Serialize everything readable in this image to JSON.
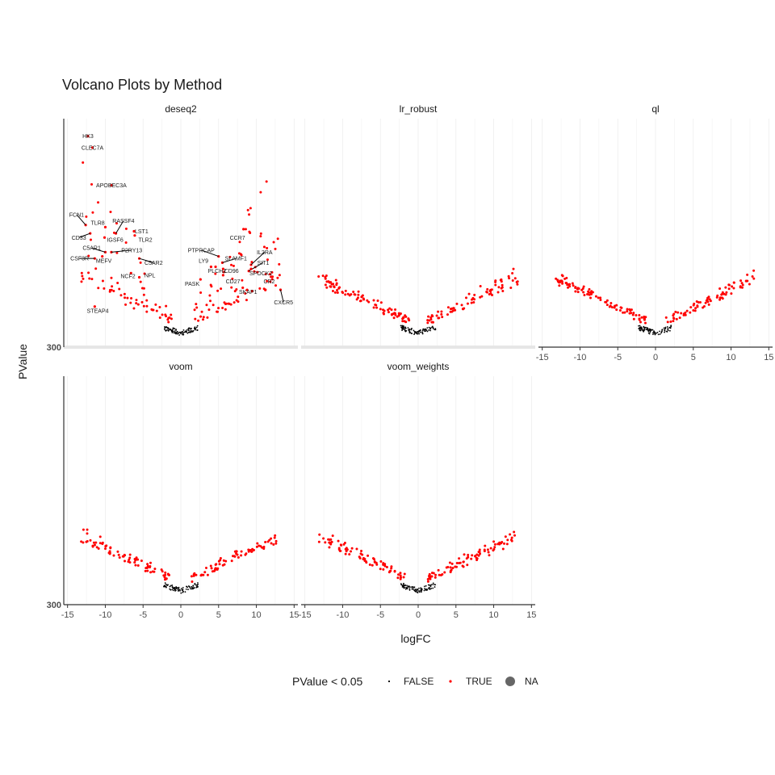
{
  "chart_data": {
    "type": "scatter",
    "title": "Volcano Plots by Method",
    "xlabel": "logFC",
    "ylabel": "PValue",
    "xlim": [
      -15.5,
      15.5
    ],
    "xticks": [
      -15,
      -10,
      -5,
      0,
      5,
      10,
      15
    ],
    "ytick_label": "300",
    "grid": true,
    "legend": {
      "title": "PValue < 0.05",
      "position": "bottom",
      "entries": [
        {
          "label": "FALSE",
          "color": "#000000"
        },
        {
          "label": "TRUE",
          "color": "#ff0000"
        },
        {
          "label": "NA",
          "color": "#666666"
        }
      ]
    },
    "panels": [
      {
        "name": "deseq2",
        "seed": 11,
        "spread": 0.58,
        "count_sig": 160,
        "count_ns": 90,
        "labels": [
          {
            "t": "HK3",
            "x": -12.3,
            "y": 0.955,
            "pt_x": -12.3,
            "pt_y": 0.955
          },
          {
            "t": "CLEC7A",
            "x": -11.7,
            "y": 0.9,
            "pt_x": -11.7,
            "pt_y": 0.9
          },
          {
            "t": "APOBEC3A",
            "x": -9.2,
            "y": 0.72,
            "pt_x": -9.2,
            "pt_y": 0.72
          },
          {
            "t": "FCN1",
            "x": -13.8,
            "y": 0.58,
            "pt_x": -12.6,
            "pt_y": 0.53
          },
          {
            "t": "TLR8",
            "x": -11.0,
            "y": 0.54,
            "pt_x": -10.0,
            "pt_y": 0.52
          },
          {
            "t": "RASSF4",
            "x": -7.6,
            "y": 0.55,
            "pt_x": -8.6,
            "pt_y": 0.49
          },
          {
            "t": "CD33",
            "x": -13.5,
            "y": 0.47,
            "pt_x": -12.0,
            "pt_y": 0.49
          },
          {
            "t": "LST1",
            "x": -5.2,
            "y": 0.5,
            "pt_x": -6.2,
            "pt_y": 0.5
          },
          {
            "t": "IGSF6",
            "x": -8.7,
            "y": 0.46,
            "pt_x": -10.1,
            "pt_y": 0.47
          },
          {
            "t": "TLR2",
            "x": -4.7,
            "y": 0.46,
            "pt_x": -6.1,
            "pt_y": 0.48
          },
          {
            "t": "C5AR1",
            "x": -11.8,
            "y": 0.42,
            "pt_x": -10.0,
            "pt_y": 0.4
          },
          {
            "t": "P2RY13",
            "x": -6.5,
            "y": 0.41,
            "pt_x": -9.2,
            "pt_y": 0.4
          },
          {
            "t": "CSF3R",
            "x": -13.4,
            "y": 0.37,
            "pt_x": -11.4,
            "pt_y": 0.37
          },
          {
            "t": "MEFV",
            "x": -10.2,
            "y": 0.36,
            "pt_x": -10.4,
            "pt_y": 0.38
          },
          {
            "t": "C5AR2",
            "x": -3.6,
            "y": 0.35,
            "pt_x": -5.5,
            "pt_y": 0.37
          },
          {
            "t": "NCF2",
            "x": -7.0,
            "y": 0.285,
            "pt_x": -6.6,
            "pt_y": 0.3
          },
          {
            "t": "NPL",
            "x": -4.1,
            "y": 0.29,
            "pt_x": -5.5,
            "pt_y": 0.28
          },
          {
            "t": "STEAP4",
            "x": -11.0,
            "y": 0.12,
            "pt_x": -11.4,
            "pt_y": 0.14
          },
          {
            "t": "CCR7",
            "x": 7.5,
            "y": 0.47,
            "pt_x": 8.3,
            "pt_y": 0.51
          },
          {
            "t": "PTPRCAP",
            "x": 2.7,
            "y": 0.41,
            "pt_x": 5.0,
            "pt_y": 0.38
          },
          {
            "t": "IL2RA",
            "x": 11.1,
            "y": 0.4,
            "pt_x": 9.3,
            "pt_y": 0.34
          },
          {
            "t": "LY9",
            "x": 3.0,
            "y": 0.36,
            "pt_x": 4.0,
            "pt_y": 0.33
          },
          {
            "t": "SLAMF1",
            "x": 7.3,
            "y": 0.37,
            "pt_x": 5.5,
            "pt_y": 0.35
          },
          {
            "t": "SIT1",
            "x": 10.9,
            "y": 0.35,
            "pt_x": 9.0,
            "pt_y": 0.31
          },
          {
            "t": "PLCH2",
            "x": 4.8,
            "y": 0.31,
            "pt_x": 4.6,
            "pt_y": 0.33
          },
          {
            "t": "CD96",
            "x": 6.7,
            "y": 0.31,
            "pt_x": 5.6,
            "pt_y": 0.32
          },
          {
            "t": "SPOCK2",
            "x": 10.6,
            "y": 0.3,
            "pt_x": 9.3,
            "pt_y": 0.32
          },
          {
            "t": "PASK",
            "x": 1.5,
            "y": 0.25,
            "pt_x": 2.6,
            "pt_y": 0.27
          },
          {
            "t": "CD27",
            "x": 6.9,
            "y": 0.26,
            "pt_x": 5.6,
            "pt_y": 0.29
          },
          {
            "t": "CR2",
            "x": 11.7,
            "y": 0.26,
            "pt_x": 11.2,
            "pt_y": 0.22
          },
          {
            "t": "SKAP1",
            "x": 8.9,
            "y": 0.21,
            "pt_x": 8.2,
            "pt_y": 0.23
          },
          {
            "t": "CXCR5",
            "x": 13.6,
            "y": 0.16,
            "pt_x": 13.2,
            "pt_y": 0.22
          }
        ]
      },
      {
        "name": "lr_robust",
        "seed": 23,
        "spread": 0.06,
        "count_sig": 170,
        "count_ns": 90,
        "labels": []
      },
      {
        "name": "ql",
        "seed": 37,
        "spread": 0.04,
        "count_sig": 170,
        "count_ns": 90,
        "labels": []
      },
      {
        "name": "voom",
        "seed": 41,
        "spread": 0.04,
        "count_sig": 150,
        "count_ns": 90,
        "labels": []
      },
      {
        "name": "voom_weights",
        "seed": 53,
        "spread": 0.05,
        "count_sig": 160,
        "count_ns": 90,
        "labels": []
      }
    ]
  }
}
